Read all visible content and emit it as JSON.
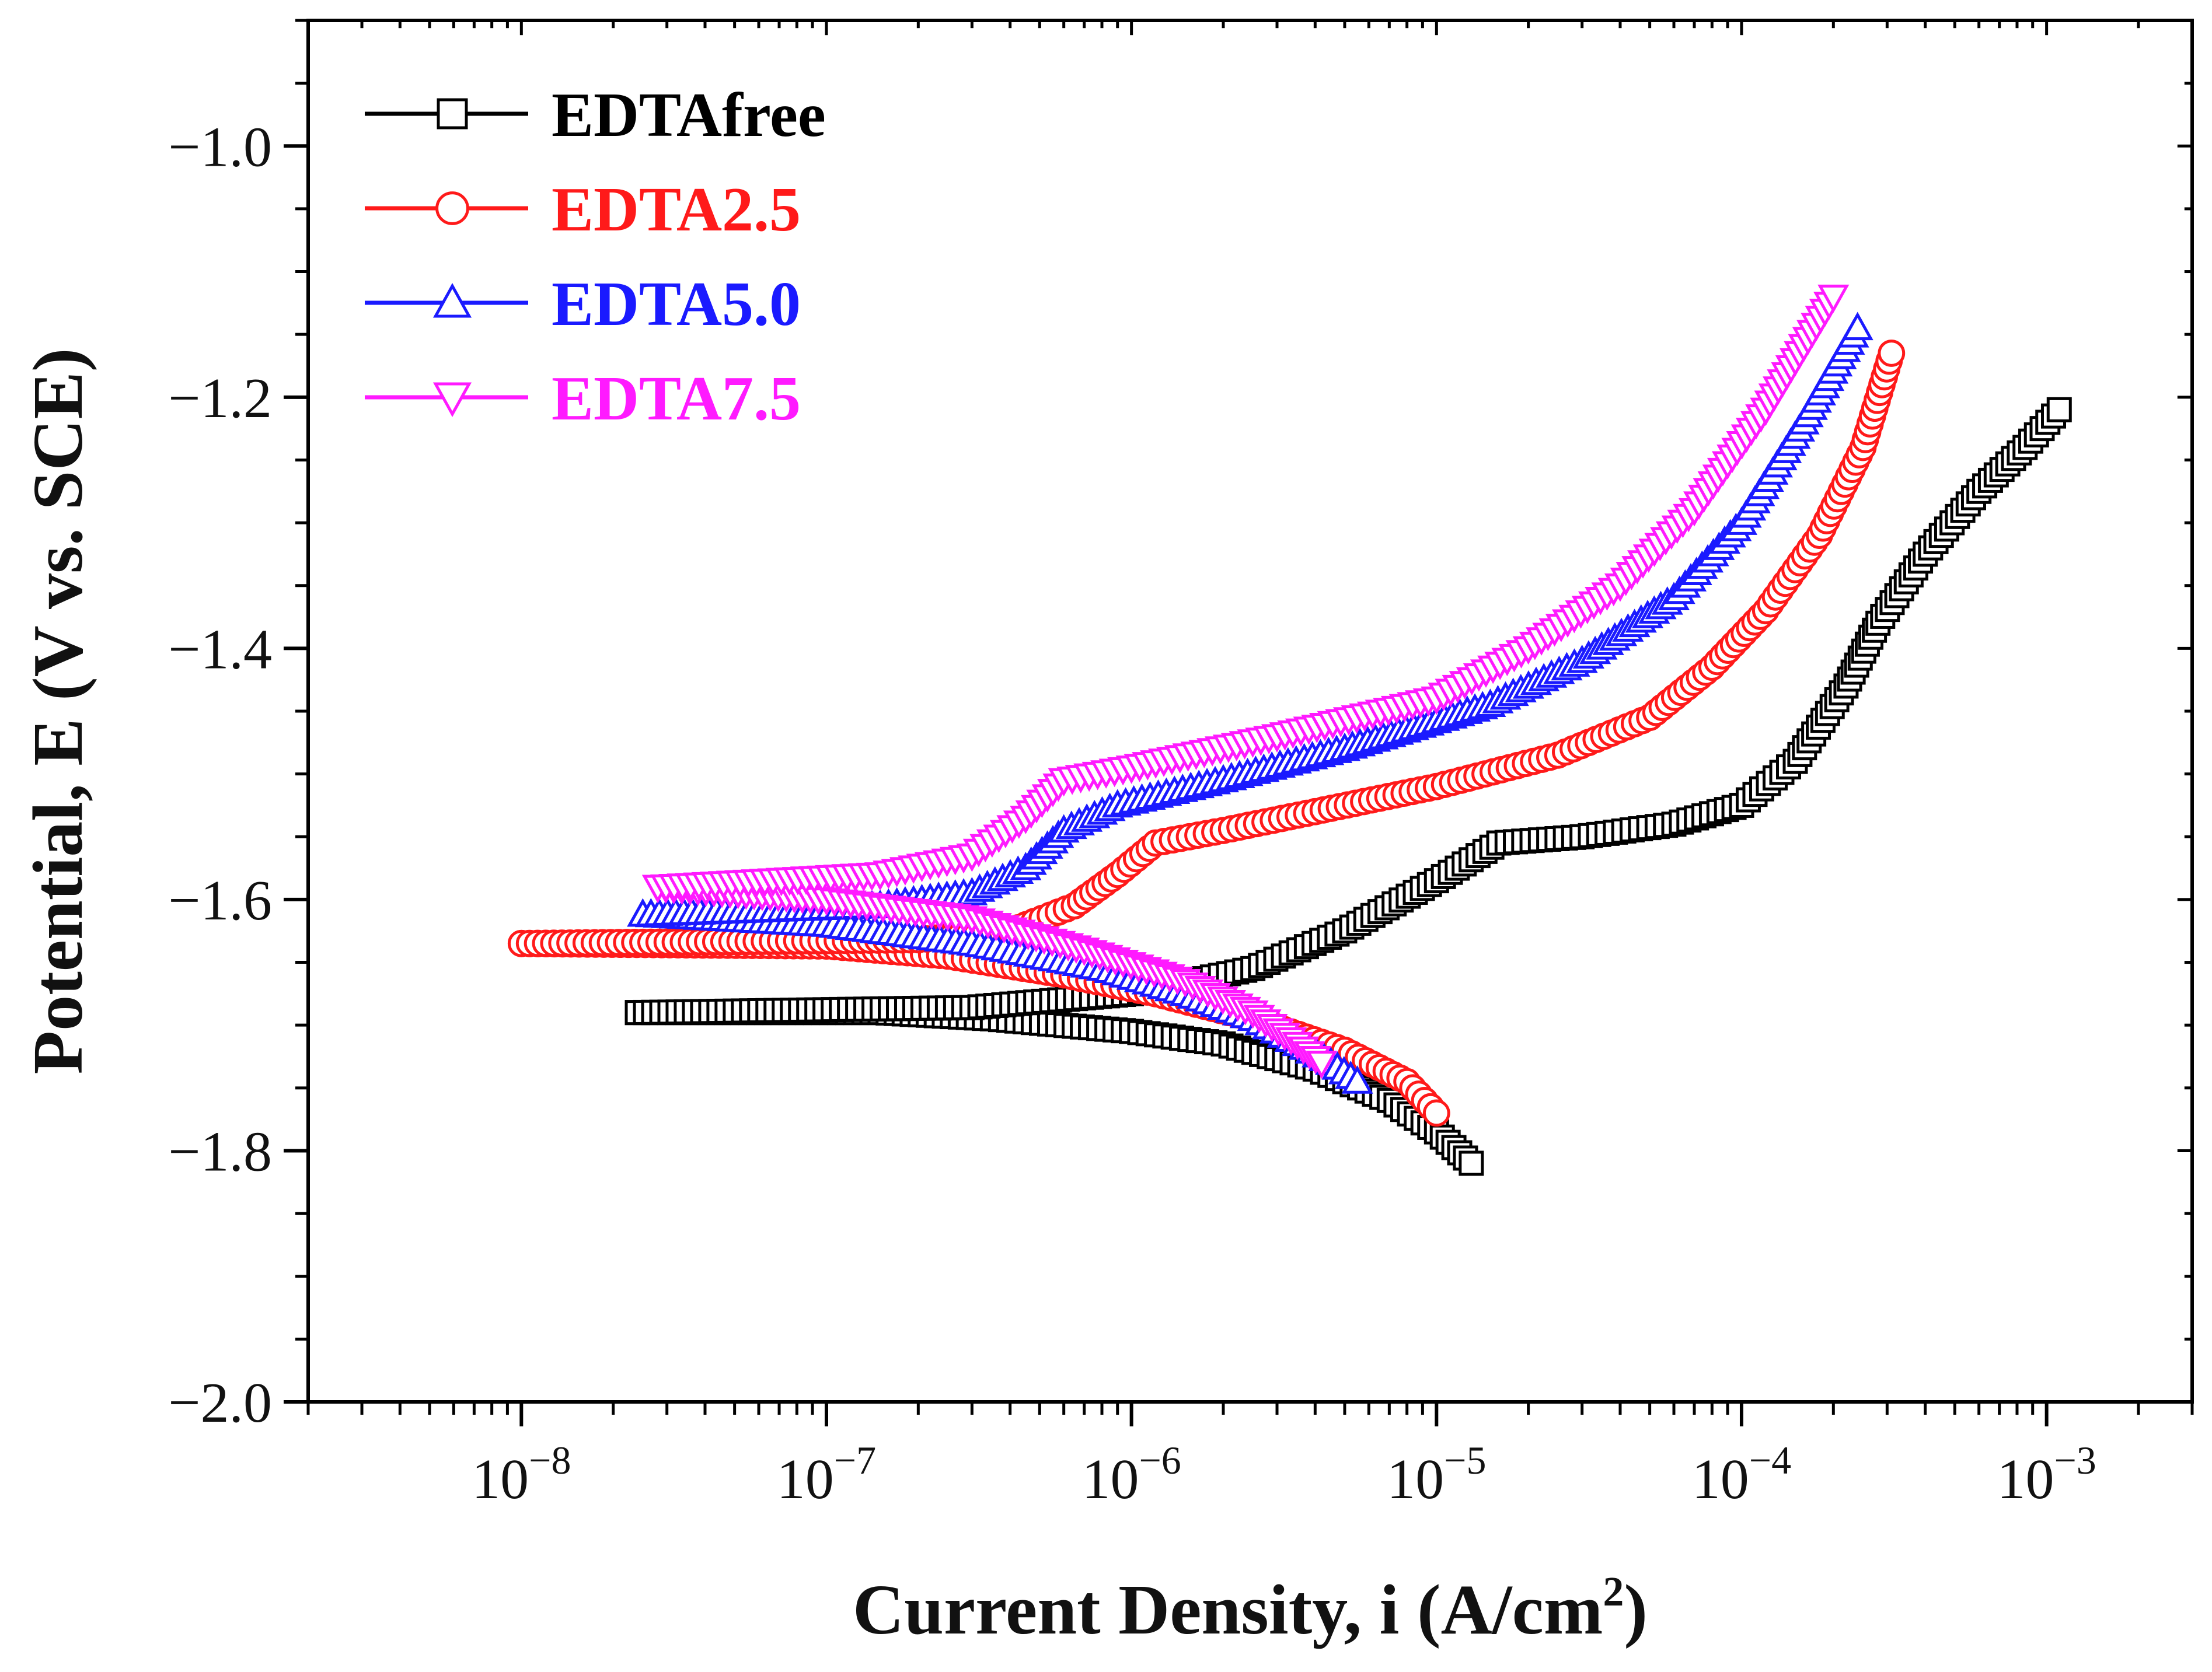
{
  "chart_data": {
    "type": "line",
    "title": "",
    "xlabel": "Current Density, i (A/cm",
    "xlabel_sup": "2",
    "xlabel_close": ")",
    "ylabel": "Potential, E (V vs. SCE)",
    "xscale": "log",
    "xlim": [
      2e-09,
      0.003
    ],
    "ylim": [
      -2.0,
      -0.9
    ],
    "x_ticks": [
      {
        "base": "10",
        "exp": "−8",
        "value": 1e-08
      },
      {
        "base": "10",
        "exp": "−7",
        "value": 1e-07
      },
      {
        "base": "10",
        "exp": "−6",
        "value": 1e-06
      },
      {
        "base": "10",
        "exp": "−5",
        "value": 1e-05
      },
      {
        "base": "10",
        "exp": "−4",
        "value": 0.0001
      },
      {
        "base": "10",
        "exp": "−3",
        "value": 0.001
      }
    ],
    "y_ticks": [
      {
        "label": "−1.0",
        "value": -1.0
      },
      {
        "label": "−1.2",
        "value": -1.2
      },
      {
        "label": "−1.4",
        "value": -1.4
      },
      {
        "label": "−1.6",
        "value": -1.6
      },
      {
        "label": "−1.8",
        "value": -1.8
      },
      {
        "label": "−2.0",
        "value": -2.0
      }
    ],
    "legend_position": "top-left",
    "series": [
      {
        "name": "EDTAfree",
        "color": "#000000",
        "marker": "square",
        "cathodic": [
          {
            "x": 2.4e-08,
            "y": -1.69
          },
          {
            "x": 1.5e-07,
            "y": -1.69
          },
          {
            "x": 3.5e-07,
            "y": -1.695
          },
          {
            "x": 1e-06,
            "y": -1.705
          },
          {
            "x": 2e-06,
            "y": -1.715
          },
          {
            "x": 4e-06,
            "y": -1.735
          },
          {
            "x": 7e-06,
            "y": -1.76
          },
          {
            "x": 1e-05,
            "y": -1.785
          },
          {
            "x": 1.3e-05,
            "y": -1.81
          }
        ],
        "anodic": [
          {
            "x": 2.4e-08,
            "y": -1.69
          },
          {
            "x": 3e-07,
            "y": -1.686
          },
          {
            "x": 1e-06,
            "y": -1.675
          },
          {
            "x": 2.5e-06,
            "y": -1.655
          },
          {
            "x": 5e-06,
            "y": -1.625
          },
          {
            "x": 1e-05,
            "y": -1.585
          },
          {
            "x": 1.6e-05,
            "y": -1.555
          },
          {
            "x": 3e-05,
            "y": -1.55
          },
          {
            "x": 6e-05,
            "y": -1.54
          },
          {
            "x": 0.0001,
            "y": -1.525
          },
          {
            "x": 0.00015,
            "y": -1.49
          },
          {
            "x": 0.00022,
            "y": -1.43
          },
          {
            "x": 0.00028,
            "y": -1.38
          },
          {
            "x": 0.0004,
            "y": -1.325
          },
          {
            "x": 0.0006,
            "y": -1.275
          },
          {
            "x": 0.00085,
            "y": -1.24
          },
          {
            "x": 0.0011,
            "y": -1.21
          }
        ]
      },
      {
        "name": "EDTA2.5",
        "color": "#ff1a1a",
        "marker": "circle",
        "cathodic": [
          {
            "x": 1e-08,
            "y": -1.635
          },
          {
            "x": 1e-07,
            "y": -1.637
          },
          {
            "x": 2.5e-07,
            "y": -1.645
          },
          {
            "x": 6e-07,
            "y": -1.66
          },
          {
            "x": 1.2e-06,
            "y": -1.675
          },
          {
            "x": 2.5e-06,
            "y": -1.695
          },
          {
            "x": 5e-06,
            "y": -1.72
          },
          {
            "x": 8e-06,
            "y": -1.745
          },
          {
            "x": 1e-05,
            "y": -1.77
          }
        ],
        "anodic": [
          {
            "x": 1e-08,
            "y": -1.635
          },
          {
            "x": 2e-07,
            "y": -1.632
          },
          {
            "x": 4e-07,
            "y": -1.625
          },
          {
            "x": 6.5e-07,
            "y": -1.605
          },
          {
            "x": 9e-07,
            "y": -1.58
          },
          {
            "x": 1.2e-06,
            "y": -1.555
          },
          {
            "x": 2e-06,
            "y": -1.545
          },
          {
            "x": 4e-06,
            "y": -1.53
          },
          {
            "x": 1e-05,
            "y": -1.51
          },
          {
            "x": 2.5e-05,
            "y": -1.485
          },
          {
            "x": 5e-05,
            "y": -1.455
          },
          {
            "x": 8e-05,
            "y": -1.415
          },
          {
            "x": 0.00012,
            "y": -1.37
          },
          {
            "x": 0.00018,
            "y": -1.31
          },
          {
            "x": 0.00025,
            "y": -1.24
          },
          {
            "x": 0.00031,
            "y": -1.165
          }
        ]
      },
      {
        "name": "EDTA5.0",
        "color": "#1a1aff",
        "marker": "triangle-up",
        "cathodic": [
          {
            "x": 2.5e-08,
            "y": -1.612
          },
          {
            "x": 1e-07,
            "y": -1.62
          },
          {
            "x": 3e-07,
            "y": -1.635
          },
          {
            "x": 8e-07,
            "y": -1.655
          },
          {
            "x": 1.5e-06,
            "y": -1.675
          },
          {
            "x": 2.5e-06,
            "y": -1.695
          },
          {
            "x": 3.5e-06,
            "y": -1.715
          },
          {
            "x": 4.5e-06,
            "y": -1.73
          },
          {
            "x": 5.5e-06,
            "y": -1.745
          }
        ],
        "anodic": [
          {
            "x": 2.5e-08,
            "y": -1.612
          },
          {
            "x": 1.5e-07,
            "y": -1.605
          },
          {
            "x": 3e-07,
            "y": -1.595
          },
          {
            "x": 4.5e-07,
            "y": -1.575
          },
          {
            "x": 6e-07,
            "y": -1.545
          },
          {
            "x": 9e-07,
            "y": -1.525
          },
          {
            "x": 2e-06,
            "y": -1.505
          },
          {
            "x": 5e-06,
            "y": -1.48
          },
          {
            "x": 1.5e-05,
            "y": -1.445
          },
          {
            "x": 3e-05,
            "y": -1.41
          },
          {
            "x": 6e-05,
            "y": -1.36
          },
          {
            "x": 0.0001,
            "y": -1.3
          },
          {
            "x": 0.00016,
            "y": -1.22
          },
          {
            "x": 0.00024,
            "y": -1.145
          }
        ]
      },
      {
        "name": "EDTA7.5",
        "color": "#ff1aff",
        "marker": "triangle-down",
        "cathodic": [
          {
            "x": 2.8e-08,
            "y": -1.59
          },
          {
            "x": 1e-07,
            "y": -1.6
          },
          {
            "x": 3e-07,
            "y": -1.615
          },
          {
            "x": 7e-07,
            "y": -1.64
          },
          {
            "x": 1.5e-06,
            "y": -1.665
          },
          {
            "x": 2.5e-06,
            "y": -1.69
          },
          {
            "x": 3.5e-06,
            "y": -1.715
          },
          {
            "x": 4.2e-06,
            "y": -1.73
          }
        ],
        "anodic": [
          {
            "x": 2.8e-08,
            "y": -1.59
          },
          {
            "x": 1.5e-07,
            "y": -1.58
          },
          {
            "x": 3e-07,
            "y": -1.565
          },
          {
            "x": 4.5e-07,
            "y": -1.535
          },
          {
            "x": 6e-07,
            "y": -1.505
          },
          {
            "x": 1e-06,
            "y": -1.495
          },
          {
            "x": 3e-06,
            "y": -1.47
          },
          {
            "x": 1e-05,
            "y": -1.44
          },
          {
            "x": 2e-05,
            "y": -1.4
          },
          {
            "x": 4e-05,
            "y": -1.35
          },
          {
            "x": 7e-05,
            "y": -1.29
          },
          {
            "x": 0.00012,
            "y": -1.21
          },
          {
            "x": 0.0002,
            "y": -1.12
          }
        ]
      }
    ]
  }
}
